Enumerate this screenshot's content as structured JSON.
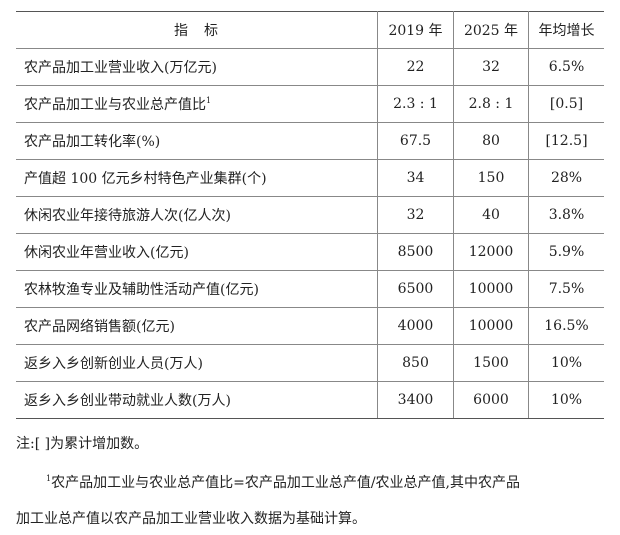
{
  "table": {
    "headers": [
      "指　标",
      "2019 年",
      "2025 年",
      "年均增长"
    ],
    "rows": [
      {
        "name": "农产品加工业营业收入(万亿元)",
        "sup": "",
        "v2019": "22",
        "v2025": "32",
        "growth": "6.5%"
      },
      {
        "name": "农产品加工业与农业总产值比",
        "sup": "1",
        "v2019": "2.3 : 1",
        "v2025": "2.8 : 1",
        "growth": "[0.5]"
      },
      {
        "name": "农产品加工转化率(%)",
        "sup": "",
        "v2019": "67.5",
        "v2025": "80",
        "growth": "[12.5]"
      },
      {
        "name": "产值超 100 亿元乡村特色产业集群(个)",
        "sup": "",
        "v2019": "34",
        "v2025": "150",
        "growth": "28%"
      },
      {
        "name": "休闲农业年接待旅游人次(亿人次)",
        "sup": "",
        "v2019": "32",
        "v2025": "40",
        "growth": "3.8%"
      },
      {
        "name": "休闲农业年营业收入(亿元)",
        "sup": "",
        "v2019": "8500",
        "v2025": "12000",
        "growth": "5.9%"
      },
      {
        "name": "农林牧渔专业及辅助性活动产值(亿元)",
        "sup": "",
        "v2019": "6500",
        "v2025": "10000",
        "growth": "7.5%"
      },
      {
        "name": "农产品网络销售额(亿元)",
        "sup": "",
        "v2019": "4000",
        "v2025": "10000",
        "growth": "16.5%"
      },
      {
        "name": "返乡入乡创新创业人员(万人)",
        "sup": "",
        "v2019": "850",
        "v2025": "1500",
        "growth": "10%"
      },
      {
        "name": "返乡入乡创业带动就业人数(万人)",
        "sup": "",
        "v2019": "3400",
        "v2025": "6000",
        "growth": "10%"
      }
    ]
  },
  "notes": {
    "note1": "注:[ ]为累计增加数。",
    "footnote_mark": "1",
    "footnote_line1": "农产品加工业与农业总产值比=农产品加工业总产值/农业总产值,其中农产品",
    "footnote_line2": "加工业总产值以农产品加工业营业收入数据为基础计算。"
  }
}
